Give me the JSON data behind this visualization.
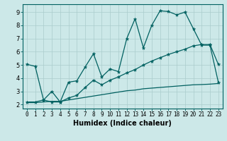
{
  "title": "",
  "xlabel": "Humidex (Indice chaleur)",
  "bg_color": "#cce8e8",
  "grid_color": "#b0d4d4",
  "line_color": "#006060",
  "xlim": [
    -0.5,
    23.5
  ],
  "ylim": [
    1.7,
    9.6
  ],
  "xticks": [
    0,
    1,
    2,
    3,
    4,
    5,
    6,
    7,
    8,
    9,
    10,
    11,
    12,
    13,
    14,
    15,
    16,
    17,
    18,
    19,
    20,
    21,
    22,
    23
  ],
  "yticks": [
    2,
    3,
    4,
    5,
    6,
    7,
    8,
    9
  ],
  "line1_x": [
    0,
    1,
    2,
    3,
    4,
    5,
    6,
    7,
    8,
    9,
    10,
    11,
    12,
    13,
    14,
    15,
    16,
    17,
    18,
    19,
    20,
    21,
    22,
    23
  ],
  "line1_y": [
    5.05,
    4.9,
    2.35,
    2.2,
    2.2,
    3.7,
    3.8,
    4.85,
    5.85,
    4.1,
    4.7,
    4.5,
    7.0,
    8.5,
    6.3,
    8.0,
    9.1,
    9.05,
    8.8,
    9.0,
    7.75,
    6.5,
    6.5,
    3.7
  ],
  "line2_x": [
    0,
    1,
    2,
    3,
    4,
    5,
    6,
    7,
    8,
    9,
    10,
    11,
    12,
    13,
    14,
    15,
    16,
    17,
    18,
    19,
    20,
    21,
    22,
    23
  ],
  "line2_y": [
    2.2,
    2.2,
    2.35,
    3.0,
    2.2,
    2.5,
    2.7,
    3.3,
    3.85,
    3.5,
    3.85,
    4.1,
    4.4,
    4.65,
    5.0,
    5.3,
    5.55,
    5.8,
    6.0,
    6.2,
    6.45,
    6.55,
    6.55,
    5.05
  ],
  "line3_x": [
    0,
    1,
    2,
    3,
    4,
    5,
    6,
    7,
    8,
    9,
    10,
    11,
    12,
    13,
    14,
    15,
    16,
    17,
    18,
    19,
    20,
    21,
    22,
    23
  ],
  "line3_y": [
    2.15,
    2.15,
    2.2,
    2.25,
    2.25,
    2.35,
    2.45,
    2.55,
    2.65,
    2.75,
    2.85,
    2.95,
    3.05,
    3.1,
    3.2,
    3.25,
    3.3,
    3.35,
    3.4,
    3.45,
    3.5,
    3.52,
    3.55,
    3.6
  ]
}
